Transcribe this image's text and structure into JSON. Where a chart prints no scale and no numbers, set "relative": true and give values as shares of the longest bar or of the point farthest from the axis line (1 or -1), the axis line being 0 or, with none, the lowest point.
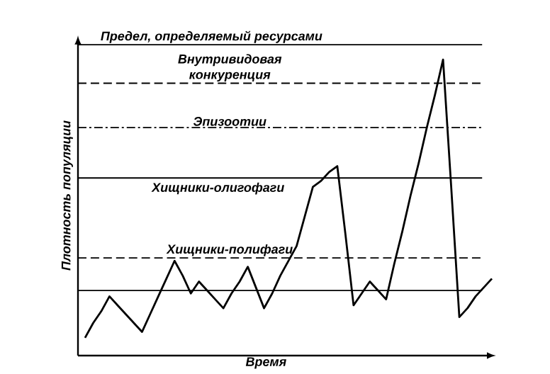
{
  "chart_data": {
    "type": "line",
    "relative": true,
    "xlabel": "Время",
    "ylabel": "Плотность популяции",
    "color": "#000000",
    "marker": "none",
    "line_style": "solid",
    "categories": [
      null,
      null,
      null,
      null,
      null,
      null,
      null,
      null,
      null,
      null,
      null,
      null,
      null,
      null,
      null,
      null,
      null,
      null,
      null,
      null,
      null,
      null,
      null,
      null,
      null,
      null,
      null,
      null,
      null,
      null,
      null,
      null,
      null,
      null,
      null,
      null,
      null,
      null,
      null,
      null,
      null,
      null,
      null,
      null,
      null,
      null,
      null,
      null,
      null,
      null,
      null
    ],
    "values": [
      0.06,
      0.11,
      0.15,
      0.2,
      0.17,
      0.14,
      0.11,
      0.08,
      0.14,
      0.2,
      0.26,
      0.32,
      0.27,
      0.21,
      0.25,
      0.22,
      0.19,
      0.16,
      0.21,
      0.25,
      0.3,
      0.23,
      0.16,
      0.21,
      0.27,
      0.32,
      0.37,
      0.47,
      0.57,
      0.59,
      0.62,
      0.64,
      0.41,
      0.17,
      0.21,
      0.25,
      0.22,
      0.19,
      0.31,
      0.42,
      0.54,
      0.65,
      0.77,
      0.88,
      1.0,
      0.57,
      0.13,
      0.16,
      0.2,
      0.23,
      0.26
    ],
    "ref_lines": [
      {
        "axis": "y",
        "value": 1.05,
        "label": "Предел, определяемый ресурсами",
        "line_style": "solid"
      },
      {
        "axis": "y",
        "value": 0.92,
        "label": "Внутривидовая конкуренция",
        "line_style": "dashed"
      },
      {
        "axis": "y",
        "value": 0.77,
        "label": "Эпизоотии",
        "line_style": "dashdot"
      },
      {
        "axis": "y",
        "value": 0.6,
        "line_style": "solid"
      },
      {
        "axis": "y",
        "value": 0.33,
        "label": "Хищники-полифаги",
        "line_style": "dashed"
      },
      {
        "axis": "y",
        "value": 0.22,
        "line_style": "solid"
      }
    ],
    "annotations": [
      "Хищники-олигофаги"
    ]
  }
}
